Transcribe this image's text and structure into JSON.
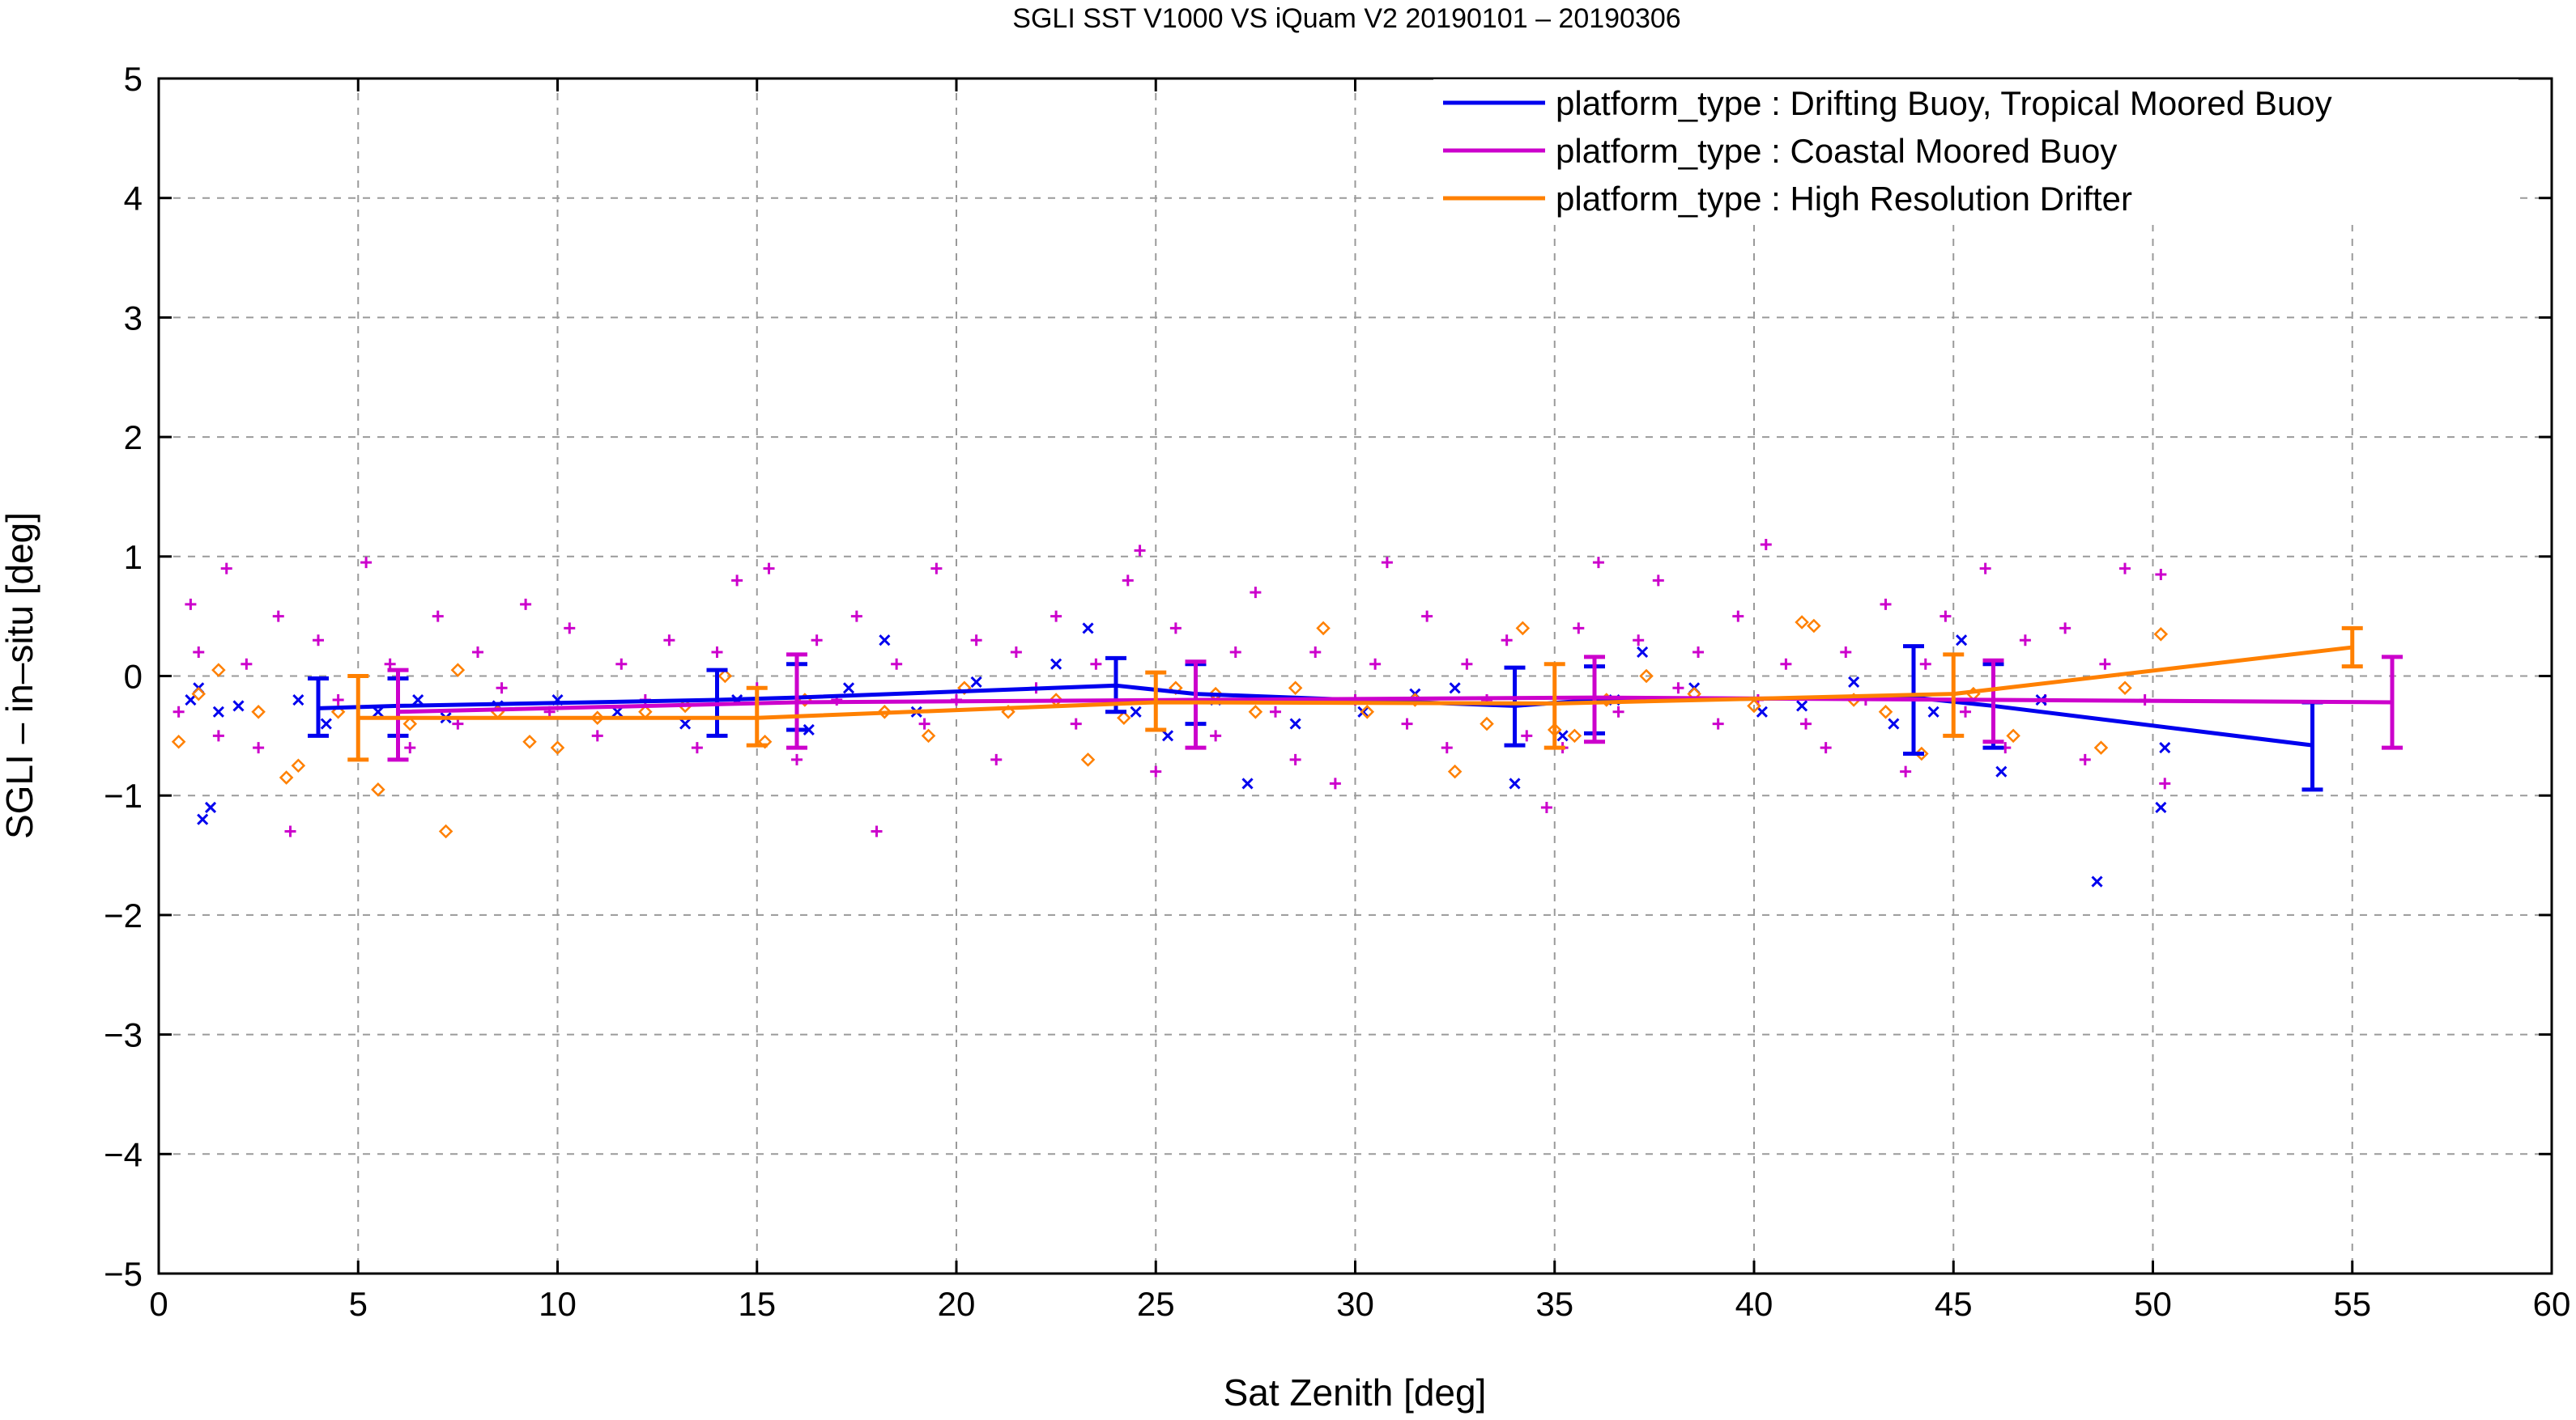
{
  "chart_data": {
    "type": "scatter",
    "title": "SGLI SST V1000 VS iQuam V2 20190101 – 20190306",
    "xlabel": "Sat Zenith [deg]",
    "ylabel": "SGLI – in–situ [deg]",
    "xlim": [
      0,
      60
    ],
    "ylim": [
      -5,
      5
    ],
    "xticks": [
      0,
      5,
      10,
      15,
      20,
      25,
      30,
      35,
      40,
      45,
      50,
      55,
      60
    ],
    "yticks": [
      -5,
      -4,
      -3,
      -2,
      -1,
      0,
      1,
      2,
      3,
      4,
      5
    ],
    "xtick_labels": [
      "0",
      "5",
      "10",
      "15",
      "20",
      "25",
      "30",
      "35",
      "40",
      "45",
      "50",
      "55",
      "60"
    ],
    "ytick_labels": [
      "−5",
      "−4",
      "−3",
      "−2",
      "−1",
      "0",
      "1",
      "2",
      "3",
      "4",
      "5"
    ],
    "grid": true,
    "legend_position": "top-right",
    "series": [
      {
        "name": "platform_type : Drifting Buoy, Tropical Moored Buoy",
        "color": "#0000ee",
        "marker": "x",
        "mean_x": [
          4,
          6,
          14,
          16,
          24,
          26,
          34,
          36,
          44,
          46,
          54
        ],
        "mean_y": [
          -0.27,
          -0.25,
          -0.2,
          -0.18,
          -0.08,
          -0.15,
          -0.25,
          -0.2,
          -0.18,
          -0.25,
          -0.58
        ],
        "err_low": [
          -0.5,
          -0.5,
          -0.5,
          -0.45,
          -0.3,
          -0.4,
          -0.58,
          -0.48,
          -0.65,
          -0.6,
          -0.95
        ],
        "err_high": [
          -0.02,
          -0.02,
          0.05,
          0.1,
          0.15,
          0.1,
          0.07,
          0.08,
          0.25,
          0.1,
          -0.22
        ],
        "points": [
          [
            0.8,
            -0.2
          ],
          [
            1,
            -0.1
          ],
          [
            1.1,
            -1.2
          ],
          [
            1.3,
            -1.1
          ],
          [
            1.5,
            -0.3
          ],
          [
            2,
            -0.25
          ],
          [
            3.5,
            -0.2
          ],
          [
            4.2,
            -0.4
          ],
          [
            5.5,
            -0.3
          ],
          [
            6.5,
            -0.2
          ],
          [
            7.2,
            -0.35
          ],
          [
            8.5,
            -0.25
          ],
          [
            10,
            -0.2
          ],
          [
            11.5,
            -0.3
          ],
          [
            13.2,
            -0.4
          ],
          [
            14.5,
            -0.2
          ],
          [
            16.3,
            -0.45
          ],
          [
            17.3,
            -0.1
          ],
          [
            18.2,
            0.3
          ],
          [
            19,
            -0.3
          ],
          [
            20.5,
            -0.05
          ],
          [
            22.5,
            0.1
          ],
          [
            23.3,
            0.4
          ],
          [
            24.5,
            -0.3
          ],
          [
            25.3,
            -0.5
          ],
          [
            26.5,
            -0.2
          ],
          [
            27.3,
            -0.9
          ],
          [
            28.5,
            -0.4
          ],
          [
            30.2,
            -0.3
          ],
          [
            31.5,
            -0.15
          ],
          [
            32.5,
            -0.1
          ],
          [
            34,
            -0.9
          ],
          [
            35.2,
            -0.5
          ],
          [
            36.5,
            -0.2
          ],
          [
            37.2,
            0.2
          ],
          [
            38.5,
            -0.1
          ],
          [
            40.2,
            -0.3
          ],
          [
            41.2,
            -0.25
          ],
          [
            42.5,
            -0.05
          ],
          [
            43.5,
            -0.4
          ],
          [
            44.5,
            -0.3
          ],
          [
            45.2,
            0.3
          ],
          [
            46.2,
            -0.8
          ],
          [
            47.2,
            -0.2
          ],
          [
            48.6,
            -1.72
          ],
          [
            50.2,
            -1.1
          ],
          [
            50.3,
            -0.6
          ]
        ]
      },
      {
        "name": "platform_type : Coastal Moored Buoy",
        "color": "#cc00cc",
        "marker": "+",
        "mean_x": [
          6,
          16,
          26,
          36,
          46,
          56
        ],
        "mean_y": [
          -0.3,
          -0.22,
          -0.2,
          -0.18,
          -0.2,
          -0.22
        ],
        "err_low": [
          -0.7,
          -0.6,
          -0.6,
          -0.55,
          -0.55,
          -0.6
        ],
        "err_high": [
          0.05,
          0.18,
          0.12,
          0.16,
          0.13,
          0.16
        ],
        "points": [
          [
            0.5,
            -0.3
          ],
          [
            0.8,
            0.6
          ],
          [
            1,
            0.2
          ],
          [
            1.5,
            -0.5
          ],
          [
            1.7,
            0.9
          ],
          [
            2.2,
            0.1
          ],
          [
            2.5,
            -0.6
          ],
          [
            3,
            0.5
          ],
          [
            3.3,
            -1.3
          ],
          [
            4,
            0.3
          ],
          [
            4.5,
            -0.2
          ],
          [
            5.2,
            0.95
          ],
          [
            5.8,
            0.1
          ],
          [
            6.3,
            -0.6
          ],
          [
            7,
            0.5
          ],
          [
            7.5,
            -0.4
          ],
          [
            8,
            0.2
          ],
          [
            8.6,
            -0.1
          ],
          [
            9.2,
            0.6
          ],
          [
            9.8,
            -0.3
          ],
          [
            10.3,
            0.4
          ],
          [
            11,
            -0.5
          ],
          [
            11.6,
            0.1
          ],
          [
            12.2,
            -0.2
          ],
          [
            12.8,
            0.3
          ],
          [
            13.5,
            -0.6
          ],
          [
            14,
            0.2
          ],
          [
            14.5,
            0.8
          ],
          [
            15,
            -0.1
          ],
          [
            15.3,
            0.9
          ],
          [
            16,
            -0.7
          ],
          [
            16.5,
            0.3
          ],
          [
            17,
            -0.2
          ],
          [
            17.5,
            0.5
          ],
          [
            18,
            -1.3
          ],
          [
            18.5,
            0.1
          ],
          [
            19.2,
            -0.4
          ],
          [
            19.5,
            0.9
          ],
          [
            20,
            -0.2
          ],
          [
            20.5,
            0.3
          ],
          [
            21,
            -0.7
          ],
          [
            21.5,
            0.2
          ],
          [
            22,
            -0.1
          ],
          [
            22.5,
            0.5
          ],
          [
            23,
            -0.4
          ],
          [
            23.5,
            0.1
          ],
          [
            24,
            -0.2
          ],
          [
            24.3,
            0.8
          ],
          [
            24.6,
            1.05
          ],
          [
            25,
            -0.8
          ],
          [
            25.5,
            0.4
          ],
          [
            26,
            -0.2
          ],
          [
            26.5,
            -0.5
          ],
          [
            27,
            0.2
          ],
          [
            27.5,
            0.7
          ],
          [
            28,
            -0.3
          ],
          [
            28.5,
            -0.7
          ],
          [
            29,
            0.2
          ],
          [
            29.5,
            -0.9
          ],
          [
            30,
            -0.2
          ],
          [
            30.5,
            0.1
          ],
          [
            30.8,
            0.95
          ],
          [
            31.3,
            -0.4
          ],
          [
            31.8,
            0.5
          ],
          [
            32.3,
            -0.6
          ],
          [
            32.8,
            0.1
          ],
          [
            33.3,
            -0.2
          ],
          [
            33.8,
            0.3
          ],
          [
            34.3,
            -0.5
          ],
          [
            34.8,
            -1.1
          ],
          [
            35.2,
            -0.6
          ],
          [
            35.6,
            0.4
          ],
          [
            36.1,
            0.95
          ],
          [
            36.6,
            -0.3
          ],
          [
            37.1,
            0.3
          ],
          [
            37.6,
            0.8
          ],
          [
            38.1,
            -0.1
          ],
          [
            38.6,
            0.2
          ],
          [
            39.1,
            -0.4
          ],
          [
            39.6,
            0.5
          ],
          [
            40.1,
            -0.2
          ],
          [
            40.3,
            1.1
          ],
          [
            40.8,
            0.1
          ],
          [
            41.3,
            -0.4
          ],
          [
            41.8,
            -0.6
          ],
          [
            42.3,
            0.2
          ],
          [
            42.8,
            -0.2
          ],
          [
            43.3,
            0.6
          ],
          [
            43.8,
            -0.8
          ],
          [
            44.3,
            0.1
          ],
          [
            44.8,
            0.5
          ],
          [
            45.3,
            -0.3
          ],
          [
            45.8,
            0.9
          ],
          [
            46.3,
            -0.6
          ],
          [
            46.8,
            0.3
          ],
          [
            47.3,
            -0.2
          ],
          [
            47.8,
            0.4
          ],
          [
            48.3,
            -0.7
          ],
          [
            48.8,
            0.1
          ],
          [
            49.3,
            0.9
          ],
          [
            49.8,
            -0.2
          ],
          [
            50.2,
            0.85
          ],
          [
            50.3,
            -0.9
          ]
        ]
      },
      {
        "name": "platform_type : High Resolution Drifter",
        "color": "#ff8000",
        "marker": "diamond",
        "mean_x": [
          5,
          15,
          25,
          35,
          45,
          55
        ],
        "mean_y": [
          -0.35,
          -0.35,
          -0.22,
          -0.23,
          -0.15,
          0.24
        ],
        "err_low": [
          -0.7,
          -0.58,
          -0.45,
          -0.6,
          -0.5,
          0.08
        ],
        "err_high": [
          0.0,
          -0.1,
          0.03,
          0.1,
          0.18,
          0.4
        ],
        "points": [
          [
            0.5,
            -0.55
          ],
          [
            1,
            -0.15
          ],
          [
            1.5,
            0.05
          ],
          [
            2.5,
            -0.3
          ],
          [
            3.2,
            -0.85
          ],
          [
            3.5,
            -0.75
          ],
          [
            4.5,
            -0.3
          ],
          [
            5.5,
            -0.95
          ],
          [
            6.3,
            -0.4
          ],
          [
            7.2,
            -1.3
          ],
          [
            7.5,
            0.05
          ],
          [
            8.5,
            -0.3
          ],
          [
            9.3,
            -0.55
          ],
          [
            10,
            -0.6
          ],
          [
            11,
            -0.35
          ],
          [
            12.2,
            -0.3
          ],
          [
            13.2,
            -0.25
          ],
          [
            14.2,
            0.0
          ],
          [
            15.2,
            -0.55
          ],
          [
            16.2,
            -0.2
          ],
          [
            18.2,
            -0.3
          ],
          [
            19.3,
            -0.5
          ],
          [
            20.2,
            -0.1
          ],
          [
            21.3,
            -0.3
          ],
          [
            22.5,
            -0.2
          ],
          [
            23.3,
            -0.7
          ],
          [
            24.2,
            -0.35
          ],
          [
            25.5,
            -0.1
          ],
          [
            26.5,
            -0.15
          ],
          [
            27.5,
            -0.3
          ],
          [
            28.5,
            -0.1
          ],
          [
            29.2,
            0.4
          ],
          [
            30.3,
            -0.3
          ],
          [
            31.5,
            -0.2
          ],
          [
            32.5,
            -0.8
          ],
          [
            33.3,
            -0.4
          ],
          [
            34.2,
            0.4
          ],
          [
            35,
            -0.45
          ],
          [
            35.5,
            -0.5
          ],
          [
            36.3,
            -0.2
          ],
          [
            37.3,
            0.0
          ],
          [
            38.5,
            -0.15
          ],
          [
            40,
            -0.25
          ],
          [
            41.2,
            0.45
          ],
          [
            41.5,
            0.42
          ],
          [
            42.5,
            -0.2
          ],
          [
            43.3,
            -0.3
          ],
          [
            44.2,
            -0.65
          ],
          [
            45.5,
            -0.15
          ],
          [
            46.5,
            -0.5
          ],
          [
            48.7,
            -0.6
          ],
          [
            49.3,
            -0.1
          ],
          [
            50.2,
            0.35
          ]
        ]
      }
    ]
  }
}
